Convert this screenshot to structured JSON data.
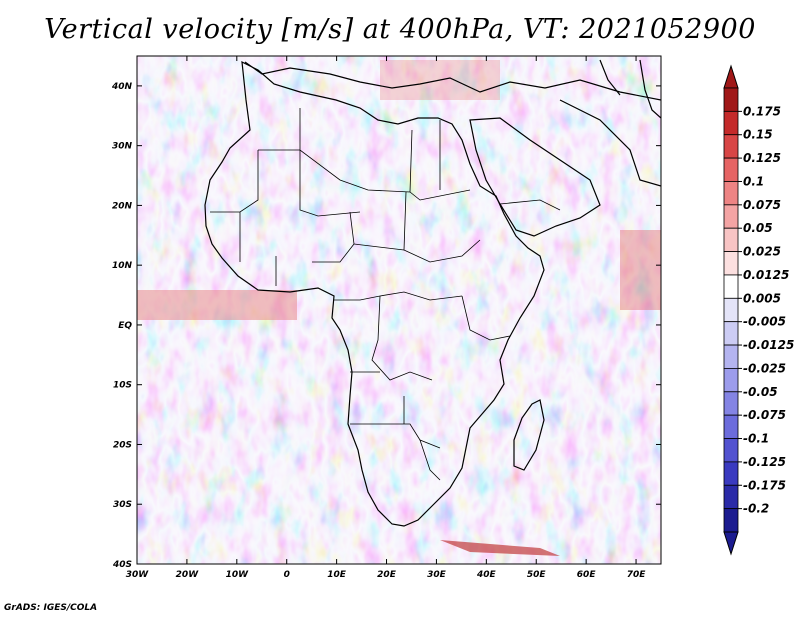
{
  "title": "Vertical velocity [m/s] at 400hPa, VT: 2021052900",
  "footer": "GrADS: IGES/COLA",
  "map": {
    "lon_range": [
      -30,
      75
    ],
    "lat_range": [
      -40,
      45
    ],
    "lat_ticks": [
      {
        "value": 40,
        "label": "40N"
      },
      {
        "value": 30,
        "label": "30N"
      },
      {
        "value": 20,
        "label": "20N"
      },
      {
        "value": 10,
        "label": "10N"
      },
      {
        "value": 0,
        "label": "EQ"
      },
      {
        "value": -10,
        "label": "10S"
      },
      {
        "value": -20,
        "label": "20S"
      },
      {
        "value": -30,
        "label": "30S"
      },
      {
        "value": -40,
        "label": "40S"
      }
    ],
    "lon_ticks": [
      {
        "value": -30,
        "label": "30W"
      },
      {
        "value": -20,
        "label": "20W"
      },
      {
        "value": -10,
        "label": "10W"
      },
      {
        "value": 0,
        "label": "0"
      },
      {
        "value": 10,
        "label": "10E"
      },
      {
        "value": 20,
        "label": "20E"
      },
      {
        "value": 30,
        "label": "30E"
      },
      {
        "value": 40,
        "label": "40E"
      },
      {
        "value": 50,
        "label": "50E"
      },
      {
        "value": 60,
        "label": "60E"
      },
      {
        "value": 70,
        "label": "70E"
      }
    ]
  },
  "colorbar": {
    "labels": [
      "0.175",
      "0.15",
      "0.125",
      "0.1",
      "0.075",
      "0.05",
      "0.025",
      "0.0125",
      "0.005",
      "-0.005",
      "-0.0125",
      "-0.025",
      "-0.05",
      "-0.075",
      "-0.1",
      "-0.125",
      "-0.175",
      "-0.2"
    ],
    "colors": [
      "#a01818",
      "#c42a2a",
      "#d84646",
      "#e66464",
      "#ee8484",
      "#f4a4a4",
      "#f8c4c4",
      "#fce0e0",
      "#ffffff",
      "#e4e4f8",
      "#ccccf4",
      "#b4b4f0",
      "#9c9cec",
      "#8484e4",
      "#6c6cdc",
      "#5252d0",
      "#3a3ac0",
      "#2a2aa8",
      "#1c1c90"
    ],
    "arrow_top_color": "#a01818",
    "arrow_bottom_color": "#1c1c90"
  }
}
